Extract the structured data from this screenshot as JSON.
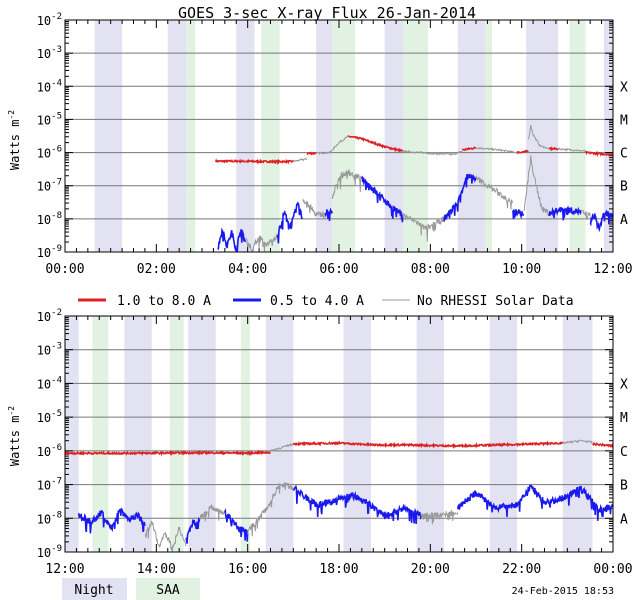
{
  "title": "GOES 3-sec X-ray Flux   26-Jan-2014",
  "ylabel_main": "Watts m",
  "ylabel_sup": "-2",
  "footer_date": "24-Feb-2015 18:53",
  "legend": [
    {
      "label": "1.0 to 8.0 A",
      "color": "#dd2222"
    },
    {
      "label": "0.5 to 4.0 A",
      "color": "#1a1aee"
    },
    {
      "label": "No RHESSI Solar Data",
      "color": "#999999"
    }
  ],
  "shading_legend": [
    {
      "label": "Night",
      "color": "#e2e2f3"
    },
    {
      "label": "SAA",
      "color": "#e2f2e2"
    }
  ],
  "colors": {
    "night": "#e2e2f3",
    "saa": "#e2f2e2",
    "grid": "#777777",
    "long": "#dd2222",
    "short": "#1a1aee",
    "norhessi": "#999999"
  },
  "chart_data": [
    {
      "type": "line",
      "x_unit": "hours UT",
      "xlim": [
        0,
        12
      ],
      "ylim": [
        -9,
        -2
      ],
      "yscale": "log",
      "x_ticks": [
        0,
        2,
        4,
        6,
        8,
        10,
        12
      ],
      "x_tick_labels": [
        "00:00",
        "02:00",
        "04:00",
        "06:00",
        "08:00",
        "10:00",
        "12:00"
      ],
      "y_tick_labels": [
        "10-9",
        "10-8",
        "10-7",
        "10-6",
        "10-5",
        "10-4",
        "10-3",
        "10-2"
      ],
      "class_labels": [
        {
          "label": "A",
          "logy": -8
        },
        {
          "label": "B",
          "logy": -7
        },
        {
          "label": "C",
          "logy": -6
        },
        {
          "label": "M",
          "logy": -5
        },
        {
          "label": "X",
          "logy": -4
        }
      ],
      "grid": true,
      "night": [
        [
          0.65,
          1.25
        ],
        [
          2.25,
          2.65
        ],
        [
          3.75,
          4.15
        ],
        [
          5.5,
          5.85
        ],
        [
          7.0,
          7.4
        ],
        [
          8.6,
          9.2
        ],
        [
          10.1,
          10.8
        ],
        [
          11.8,
          12.0
        ]
      ],
      "saa": [
        [
          2.65,
          2.85
        ],
        [
          4.3,
          4.7
        ],
        [
          5.85,
          6.35
        ],
        [
          7.4,
          7.95
        ],
        [
          9.2,
          9.35
        ],
        [
          11.05,
          11.4
        ]
      ],
      "series": [
        {
          "name": "1.0 to 8.0 A",
          "segments": [
            {
              "rhessi": false,
              "x": [
                3.3,
                3.8,
                4.2,
                4.6,
                5.0
              ],
              "y": [
                5.5e-07,
                5.5e-07,
                5.4e-07,
                5.3e-07,
                5.4e-07
              ]
            },
            {
              "rhessi": true,
              "x": [
                5.0,
                5.3
              ],
              "y": [
                5.4e-07,
                6.5e-07
              ]
            },
            {
              "rhessi": false,
              "x": [
                5.3,
                5.5
              ],
              "y": [
                9.5e-07,
                9.5e-07
              ]
            },
            {
              "rhessi": true,
              "x": [
                5.5,
                5.8,
                6.0,
                6.2
              ],
              "y": [
                9.5e-07,
                1e-06,
                2e-06,
                3.1e-06
              ]
            },
            {
              "rhessi": false,
              "x": [
                6.2,
                6.5,
                7.0,
                7.4
              ],
              "y": [
                3.1e-06,
                2.6e-06,
                1.5e-06,
                1.1e-06
              ]
            },
            {
              "rhessi": true,
              "x": [
                7.4,
                8.0,
                8.5,
                8.7
              ],
              "y": [
                1.1e-06,
                9.5e-07,
                8.8e-07,
                1.1e-06
              ]
            },
            {
              "rhessi": false,
              "x": [
                8.7,
                9.0
              ],
              "y": [
                1.2e-06,
                1.4e-06
              ]
            },
            {
              "rhessi": true,
              "x": [
                9.0,
                9.5,
                9.9
              ],
              "y": [
                1.4e-06,
                1.2e-06,
                1e-06
              ]
            },
            {
              "rhessi": false,
              "x": [
                9.9,
                10.15
              ],
              "y": [
                1e-06,
                1.1e-06
              ]
            },
            {
              "rhessi": true,
              "x": [
                10.15,
                10.2,
                10.25,
                10.4,
                10.6
              ],
              "y": [
                2.5e-06,
                6.5e-06,
                3.5e-06,
                1.6e-06,
                1.3e-06
              ]
            },
            {
              "rhessi": false,
              "x": [
                10.6,
                10.8
              ],
              "y": [
                1.3e-06,
                1.3e-06
              ]
            },
            {
              "rhessi": true,
              "x": [
                10.8,
                11.4
              ],
              "y": [
                1.3e-06,
                1.1e-06
              ]
            },
            {
              "rhessi": false,
              "x": [
                11.4,
                11.8,
                12.0
              ],
              "y": [
                1e-06,
                9e-07,
                8.8e-07
              ]
            }
          ]
        },
        {
          "name": "0.5 to 4.0 A",
          "segments": [
            {
              "rhessi": false,
              "x": [
                3.35,
                3.45,
                3.55,
                3.65,
                3.75,
                3.85,
                3.95
              ],
              "y": [
                1.3e-09,
                5e-09,
                1.5e-09,
                4e-09,
                1.2e-09,
                5e-09,
                2e-09
              ]
            },
            {
              "rhessi": true,
              "x": [
                3.95,
                4.1,
                4.25,
                4.4,
                4.55,
                4.65
              ],
              "y": [
                2.5e-09,
                1.2e-09,
                3e-09,
                1.5e-09,
                2.5e-09,
                3e-09
              ]
            },
            {
              "rhessi": false,
              "x": [
                4.65,
                4.8,
                4.95,
                5.1,
                5.2
              ],
              "y": [
                3e-09,
                1.5e-08,
                6e-09,
                3e-08,
                1e-08
              ]
            },
            {
              "rhessi": true,
              "x": [
                5.2,
                5.35,
                5.5,
                5.7
              ],
              "y": [
                4e-08,
                2.5e-08,
                1.3e-08,
                1.5e-08
              ]
            },
            {
              "rhessi": false,
              "x": [
                5.7,
                5.85
              ],
              "y": [
                1.5e-08,
                1.7e-08
              ]
            },
            {
              "rhessi": true,
              "x": [
                5.85,
                6.0,
                6.2,
                6.5
              ],
              "y": [
                4e-08,
                1.8e-07,
                2.6e-07,
                1.6e-07
              ]
            },
            {
              "rhessi": false,
              "x": [
                6.5,
                6.9,
                7.2,
                7.4
              ],
              "y": [
                1.6e-07,
                5e-08,
                2e-08,
                1.3e-08
              ]
            },
            {
              "rhessi": true,
              "x": [
                7.4,
                7.7,
                7.9,
                8.0,
                8.3
              ],
              "y": [
                1.3e-08,
                8e-09,
                5e-09,
                6e-09,
                1e-08
              ]
            },
            {
              "rhessi": false,
              "x": [
                8.3,
                8.6,
                8.8,
                9.0
              ],
              "y": [
                1e-08,
                3e-08,
                2e-07,
                1.7e-07
              ]
            },
            {
              "rhessi": true,
              "x": [
                9.0,
                9.5,
                9.8
              ],
              "y": [
                1.7e-07,
                6e-08,
                3e-08
              ]
            },
            {
              "rhessi": false,
              "x": [
                9.8,
                10.05
              ],
              "y": [
                2e-08,
                1.3e-08
              ]
            },
            {
              "rhessi": true,
              "x": [
                10.05,
                10.15,
                10.2,
                10.3,
                10.45,
                10.6
              ],
              "y": [
                1.5e-08,
                2e-07,
                7e-07,
                1.2e-07,
                2e-08,
                1.5e-08
              ]
            },
            {
              "rhessi": false,
              "x": [
                10.6,
                10.8,
                11.0,
                11.3
              ],
              "y": [
                1.5e-08,
                1.8e-08,
                1.9e-08,
                1.6e-08
              ]
            },
            {
              "rhessi": true,
              "x": [
                11.3,
                11.5
              ],
              "y": [
                1.6e-08,
                1.2e-08
              ]
            },
            {
              "rhessi": false,
              "x": [
                11.5,
                11.6,
                11.7,
                11.8,
                12.0
              ],
              "y": [
                8e-09,
                1.3e-08,
                5e-09,
                1.5e-08,
                1.2e-08
              ]
            }
          ]
        }
      ]
    },
    {
      "type": "line",
      "x_unit": "hours UT",
      "xlim": [
        12,
        24
      ],
      "ylim": [
        -9,
        -2
      ],
      "yscale": "log",
      "x_ticks": [
        12,
        14,
        16,
        18,
        20,
        22,
        24
      ],
      "x_tick_labels": [
        "12:00",
        "14:00",
        "16:00",
        "18:00",
        "20:00",
        "22:00",
        "00:00"
      ],
      "y_tick_labels": [
        "10-9",
        "10-8",
        "10-7",
        "10-6",
        "10-5",
        "10-4",
        "10-3",
        "10-2"
      ],
      "class_labels": [
        {
          "label": "A",
          "logy": -8
        },
        {
          "label": "B",
          "logy": -7
        },
        {
          "label": "C",
          "logy": -6
        },
        {
          "label": "M",
          "logy": -5
        },
        {
          "label": "X",
          "logy": -4
        }
      ],
      "grid": true,
      "night": [
        [
          12.0,
          12.3
        ],
        [
          13.3,
          13.9
        ],
        [
          14.7,
          15.3
        ],
        [
          16.4,
          17.0
        ],
        [
          18.1,
          18.7
        ],
        [
          19.7,
          20.3
        ],
        [
          21.3,
          21.9
        ],
        [
          22.9,
          23.55
        ]
      ],
      "saa": [
        [
          12.6,
          12.95
        ],
        [
          14.3,
          14.6
        ],
        [
          15.85,
          16.05
        ]
      ],
      "series": [
        {
          "name": "1.0 to 8.0 A",
          "segments": [
            {
              "rhessi": false,
              "x": [
                12.0,
                13.0,
                14.0,
                15.0,
                16.0,
                16.5
              ],
              "y": [
                8.5e-07,
                8.5e-07,
                8.6e-07,
                8.8e-07,
                8.6e-07,
                9e-07
              ]
            },
            {
              "rhessi": true,
              "x": [
                16.5,
                17.0
              ],
              "y": [
                1e-06,
                1.6e-06
              ]
            },
            {
              "rhessi": false,
              "x": [
                17.0,
                18.0,
                18.8,
                19.5,
                20.5,
                21.5,
                22.2,
                22.9
              ],
              "y": [
                1.6e-06,
                1.7e-06,
                1.5e-06,
                1.5e-06,
                1.4e-06,
                1.5e-06,
                1.6e-06,
                1.7e-06
              ]
            },
            {
              "rhessi": true,
              "x": [
                22.9,
                23.3,
                23.55
              ],
              "y": [
                1.7e-06,
                2e-06,
                1.8e-06
              ]
            },
            {
              "rhessi": false,
              "x": [
                23.55,
                24.0
              ],
              "y": [
                1.6e-06,
                1.4e-06
              ]
            }
          ]
        },
        {
          "name": "0.5 to 4.0 A",
          "segments": [
            {
              "rhessi": false,
              "x": [
                12.3,
                12.6,
                12.8,
                13.0,
                13.2,
                13.4,
                13.6,
                13.75
              ],
              "y": [
                1.2e-08,
                8e-09,
                1.5e-08,
                5e-09,
                2e-08,
                9e-09,
                1.3e-08,
                6e-09
              ]
            },
            {
              "rhessi": true,
              "x": [
                13.75,
                13.9,
                14.05,
                14.2,
                14.35,
                14.5,
                14.65
              ],
              "y": [
                3e-09,
                8e-09,
                1.5e-09,
                4e-09,
                1.2e-09,
                5e-09,
                1.5e-09
              ]
            },
            {
              "rhessi": false,
              "x": [
                14.65,
                14.8,
                14.95
              ],
              "y": [
                2e-09,
                8e-09,
                1e-08
              ]
            },
            {
              "rhessi": true,
              "x": [
                14.95,
                15.2,
                15.5
              ],
              "y": [
                1e-08,
                2.3e-08,
                1.4e-08
              ]
            },
            {
              "rhessi": false,
              "x": [
                15.5,
                15.8,
                16.0
              ],
              "y": [
                1.5e-08,
                5e-09,
                4e-09
              ]
            },
            {
              "rhessi": true,
              "x": [
                16.0,
                16.3,
                16.5,
                16.7,
                17.0
              ],
              "y": [
                4e-09,
                1.2e-08,
                3e-08,
                1.1e-07,
                8e-08
              ]
            },
            {
              "rhessi": false,
              "x": [
                17.0,
                17.5,
                17.8,
                18.3,
                18.6,
                19.0,
                19.4,
                19.8
              ],
              "y": [
                8e-08,
                2.5e-08,
                3e-08,
                5e-08,
                3e-08,
                1.2e-08,
                2e-08,
                1.2e-08
              ]
            },
            {
              "rhessi": true,
              "x": [
                19.8,
                20.3,
                20.6
              ],
              "y": [
                1.2e-08,
                1.3e-08,
                1.5e-08
              ]
            },
            {
              "rhessi": false,
              "x": [
                20.6,
                21.0,
                21.4,
                21.9,
                22.2,
                22.5,
                22.9,
                23.3,
                23.7,
                24.0
              ],
              "y": [
                2e-08,
                6e-08,
                2e-08,
                2.5e-08,
                9e-08,
                3e-08,
                4e-08,
                8e-08,
                1.8e-08,
                2.2e-08
              ]
            }
          ]
        }
      ]
    }
  ]
}
